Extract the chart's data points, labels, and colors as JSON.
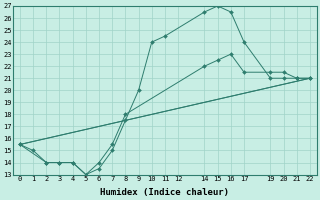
{
  "xlabel": "Humidex (Indice chaleur)",
  "bg_color": "#c8eee4",
  "grid_color": "#a0d4c8",
  "line_color": "#2e7d6e",
  "ylim": [
    13,
    27
  ],
  "xlim": [
    -0.5,
    22.5
  ],
  "yticks": [
    13,
    14,
    15,
    16,
    17,
    18,
    19,
    20,
    21,
    22,
    23,
    24,
    25,
    26,
    27
  ],
  "xtick_positions": [
    0,
    1,
    2,
    3,
    4,
    5,
    6,
    7,
    8,
    9,
    10,
    11,
    12,
    14,
    15,
    16,
    17,
    19,
    20,
    21,
    22
  ],
  "xtick_labels": [
    "0",
    "1",
    "2",
    "3",
    "4",
    "5",
    "6",
    "7",
    "8",
    "9",
    "10",
    "11",
    "12",
    "14",
    "15",
    "16",
    "17",
    "19",
    "20",
    "21",
    "22"
  ],
  "lines": [
    {
      "x": [
        0,
        1,
        2,
        3,
        4,
        5,
        6,
        7,
        8,
        9,
        10,
        11,
        14,
        15,
        16,
        17,
        19,
        20,
        21,
        22
      ],
      "y": [
        15.5,
        15,
        14,
        14,
        14,
        13,
        13.5,
        15,
        17.5,
        20,
        24,
        24.5,
        26.5,
        27,
        26.5,
        24,
        21,
        21,
        21,
        21
      ],
      "has_markers": true
    },
    {
      "x": [
        0,
        2,
        3,
        4,
        5,
        6,
        7,
        8,
        14,
        15,
        16,
        17,
        19,
        20,
        21,
        22
      ],
      "y": [
        15.5,
        14,
        14,
        14,
        13,
        14,
        15.5,
        18,
        22,
        22.5,
        23,
        21.5,
        21.5,
        21.5,
        21,
        21
      ],
      "has_markers": true
    },
    {
      "x": [
        0,
        22
      ],
      "y": [
        15.5,
        21
      ],
      "has_markers": false
    },
    {
      "x": [
        0,
        22
      ],
      "y": [
        15.5,
        21
      ],
      "has_markers": false
    }
  ]
}
